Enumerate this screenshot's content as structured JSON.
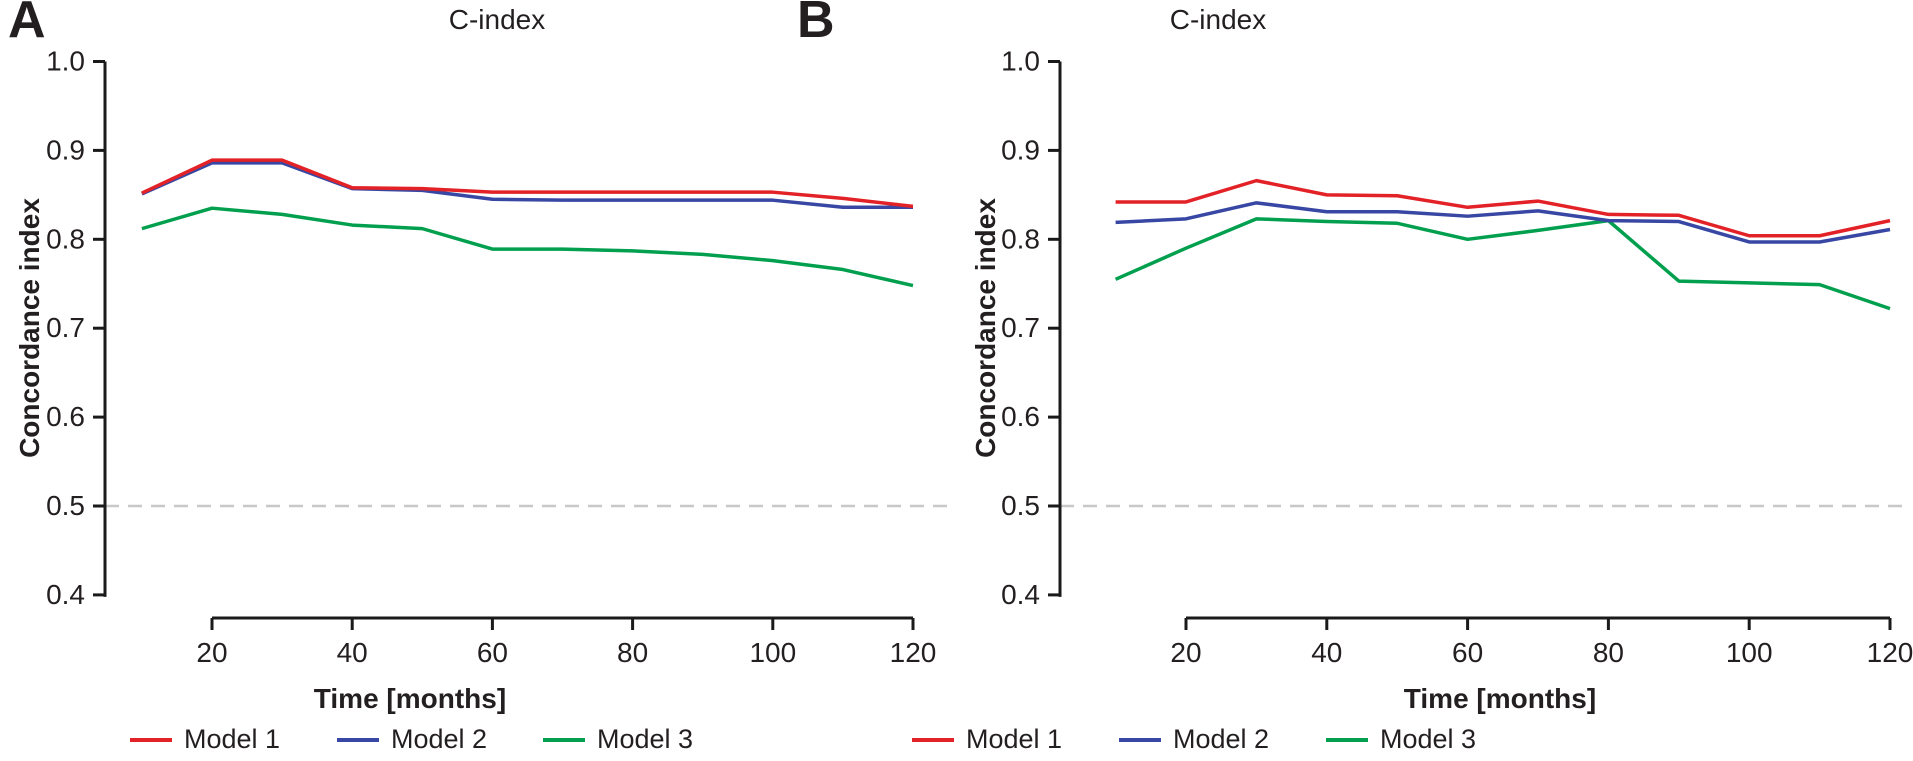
{
  "figure": {
    "panels": [
      {
        "label": "A"
      },
      {
        "label": "B"
      }
    ]
  },
  "colors": {
    "model1": "#e32227",
    "model2": "#3847a3",
    "model3": "#02a04e",
    "reference_line": "#c8c8c8",
    "axis": "#1a1a1a",
    "text": "#231f20"
  },
  "chart_data": [
    {
      "type": "line",
      "title": "C-index",
      "xlabel": "Time [months]",
      "ylabel": "Concordance index",
      "x": [
        10,
        20,
        30,
        40,
        50,
        60,
        70,
        80,
        90,
        100,
        110,
        120
      ],
      "series": [
        {
          "name": "Model 1",
          "color": "#e32227",
          "values": [
            0.852,
            0.889,
            0.889,
            0.858,
            0.857,
            0.853,
            0.853,
            0.853,
            0.853,
            0.853,
            0.846,
            0.837
          ]
        },
        {
          "name": "Model 2",
          "color": "#3847a3",
          "values": [
            0.851,
            0.886,
            0.886,
            0.857,
            0.855,
            0.845,
            0.844,
            0.844,
            0.844,
            0.844,
            0.836,
            0.836
          ]
        },
        {
          "name": "Model 3",
          "color": "#02a04e",
          "values": [
            0.812,
            0.835,
            0.828,
            0.816,
            0.812,
            0.789,
            0.789,
            0.787,
            0.783,
            0.776,
            0.766,
            0.748
          ]
        }
      ],
      "ylim": [
        0.4,
        1.0
      ],
      "yticks": [
        1.0,
        0.9,
        0.8,
        0.7,
        0.6,
        0.5,
        0.4
      ],
      "xticks": [
        20,
        40,
        60,
        80,
        100,
        120
      ],
      "reference_line": {
        "y": 0.5,
        "style": "dashed"
      },
      "grid": false,
      "legend_position": "bottom"
    },
    {
      "type": "line",
      "title": "C-index",
      "xlabel": "Time [months]",
      "ylabel": "Concordance index",
      "x": [
        10,
        20,
        30,
        40,
        50,
        60,
        70,
        80,
        90,
        100,
        110,
        120
      ],
      "series": [
        {
          "name": "Model 1",
          "color": "#e32227",
          "values": [
            0.842,
            0.842,
            0.866,
            0.85,
            0.849,
            0.836,
            0.843,
            0.828,
            0.827,
            0.804,
            0.804,
            0.821
          ]
        },
        {
          "name": "Model 2",
          "color": "#3847a3",
          "values": [
            0.819,
            0.823,
            0.841,
            0.831,
            0.831,
            0.826,
            0.832,
            0.821,
            0.82,
            0.797,
            0.797,
            0.811
          ]
        },
        {
          "name": "Model 3",
          "color": "#02a04e",
          "values": [
            0.755,
            0.79,
            0.823,
            0.82,
            0.818,
            0.8,
            0.81,
            0.821,
            0.753,
            0.751,
            0.749,
            0.722
          ]
        }
      ],
      "ylim": [
        0.4,
        1.0
      ],
      "yticks": [
        1.0,
        0.9,
        0.8,
        0.7,
        0.6,
        0.5,
        0.4
      ],
      "xticks": [
        20,
        40,
        60,
        80,
        100,
        120
      ],
      "reference_line": {
        "y": 0.5,
        "style": "dashed"
      },
      "grid": false,
      "legend_position": "bottom"
    }
  ]
}
